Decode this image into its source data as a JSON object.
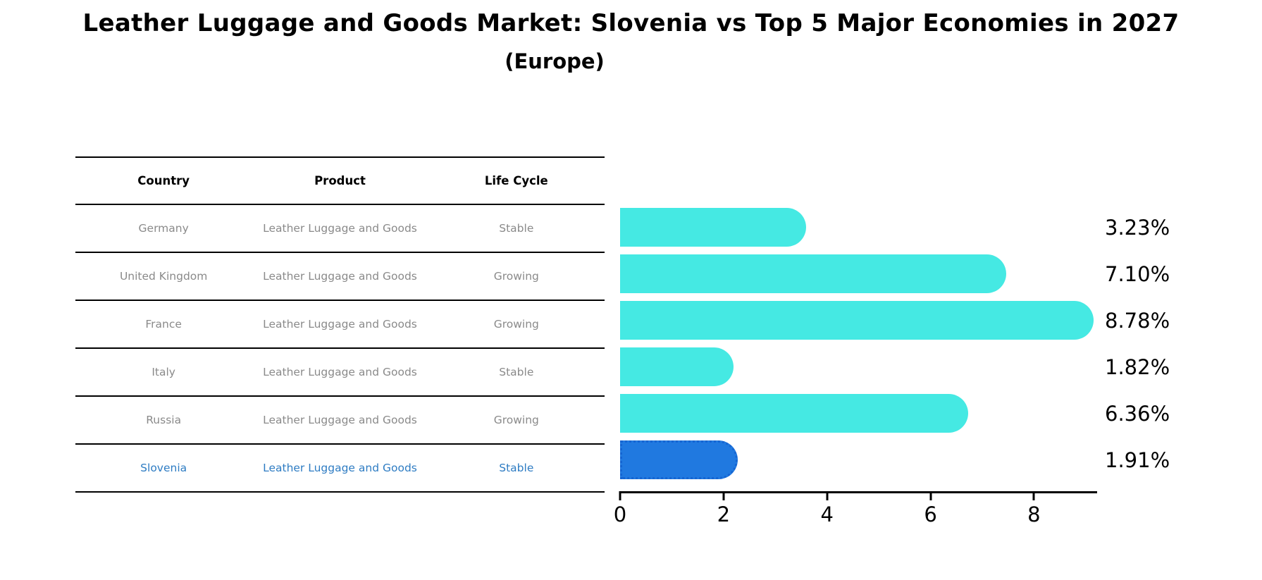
{
  "title": "Leather Luggage and Goods Market: Slovenia vs Top 5 Major Economies in 2027",
  "subtitle": "(Europe)",
  "table": {
    "headers": [
      "Country",
      "Product",
      "Life Cycle"
    ],
    "rows": [
      {
        "country": "Germany",
        "product": "Leather Luggage and Goods",
        "life_cycle": "Stable",
        "highlighted": false
      },
      {
        "country": "United Kingdom",
        "product": "Leather Luggage and Goods",
        "life_cycle": "Growing",
        "highlighted": false
      },
      {
        "country": "France",
        "product": "Leather Luggage and Goods",
        "life_cycle": "Growing",
        "highlighted": false
      },
      {
        "country": "Italy",
        "product": "Leather Luggage and Goods",
        "life_cycle": "Stable",
        "highlighted": false
      },
      {
        "country": "Russia",
        "product": "Leather Luggage and Goods",
        "life_cycle": "Growing",
        "highlighted": false
      },
      {
        "country": "Slovenia",
        "product": "Leather Luggage and Goods",
        "life_cycle": "Stable",
        "highlighted": true
      }
    ]
  },
  "chart_data": {
    "type": "bar",
    "orientation": "horizontal",
    "categories": [
      "Germany",
      "United Kingdom",
      "France",
      "Italy",
      "Russia",
      "Slovenia"
    ],
    "values": [
      3.23,
      7.1,
      8.78,
      1.82,
      6.36,
      1.91
    ],
    "labels": [
      "3.23%",
      "7.10%",
      "8.78%",
      "1.82%",
      "6.36%",
      "1.91%"
    ],
    "highlight_index": 5,
    "xticks": [
      0,
      2,
      4,
      6,
      8
    ],
    "xlim": [
      0,
      9.22
    ],
    "grid": false,
    "legend": false,
    "bar_color": "#45E9E3",
    "highlight_color": "#2079E0",
    "highlight_border_color": "#1565D2"
  },
  "colors": {
    "background": "#FFFFFF",
    "table_text": "#8A8A8A",
    "highlight_text": "#2E7CC3",
    "axis": "#000000"
  }
}
